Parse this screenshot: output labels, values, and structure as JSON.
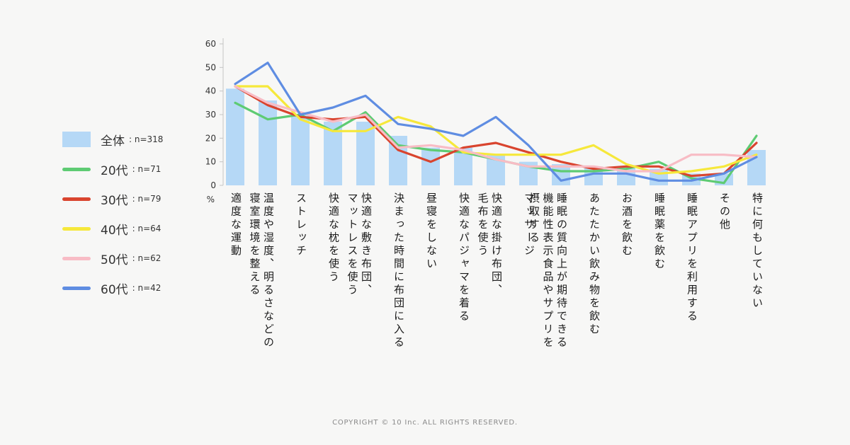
{
  "page": {
    "background": "#f7f7f6"
  },
  "legend": {
    "items": [
      {
        "name": "全体",
        "count": ": n=318",
        "color": "#b5d8f6",
        "swatch": "bar"
      },
      {
        "name": "20代",
        "count": ": n=71",
        "color": "#5ecb73",
        "swatch": "line"
      },
      {
        "name": "30代",
        "count": ": n=79",
        "color": "#d9442e",
        "swatch": "line"
      },
      {
        "name": "40代",
        "count": ": n=64",
        "color": "#f6e83b",
        "swatch": "line"
      },
      {
        "name": "50代",
        "count": ": n=62",
        "color": "#f8bcc5",
        "swatch": "line"
      },
      {
        "name": "60代",
        "count": ": n=42",
        "color": "#5f8de2",
        "swatch": "line"
      }
    ]
  },
  "chart_data": {
    "type": "bar+line",
    "title": "",
    "xlabel": "",
    "ylabel": "%",
    "ylim": [
      0,
      60
    ],
    "y_ticks": [
      0,
      10,
      20,
      30,
      40,
      50,
      60
    ],
    "grid": false,
    "legend_position": "left",
    "categories": [
      "適度な運動",
      "温度や湿度、明るさなどの\n寝室環境を整える",
      "ストレッチ",
      "快適な枕を使う",
      "快適な敷き布団、\nマットレスを使う",
      "決まった時間に布団に入る",
      "昼寝をしない",
      "快適なパジャマを着る",
      "快適な掛け布団、\n毛布を使う",
      "マッサージ",
      "睡眠の質向上が期待できる\n機能性表示食品やサプリを\n摂取する",
      "あたたかい飲み物を飲む",
      "お酒を飲む",
      "睡眠薬を飲む",
      "睡眠アプリを利用する",
      "その他",
      "特に何もしていない"
    ],
    "bar_series": {
      "name": "全体",
      "color": "#b5d8f6",
      "values": [
        41,
        36,
        30,
        27,
        27,
        21,
        16,
        16,
        13,
        10,
        9,
        8,
        8,
        7,
        5,
        5,
        15
      ]
    },
    "series": [
      {
        "name": "20代",
        "color": "#5ecb73",
        "values": [
          35,
          28,
          30,
          23,
          31,
          17,
          15,
          14,
          11,
          8,
          6,
          6,
          7,
          10,
          3,
          1,
          21
        ]
      },
      {
        "name": "30代",
        "color": "#d9442e",
        "values": [
          42,
          34,
          29,
          28,
          29,
          15,
          10,
          16,
          18,
          14,
          10,
          7,
          8,
          8,
          4,
          5,
          18
        ]
      },
      {
        "name": "40代",
        "color": "#f6e83b",
        "values": [
          42,
          42,
          28,
          23,
          23,
          29,
          25,
          14,
          13,
          13,
          13,
          17,
          9,
          5,
          6,
          8,
          13
        ]
      },
      {
        "name": "50代",
        "color": "#f8bcc5",
        "values": [
          42,
          35,
          31,
          27,
          30,
          16,
          17,
          15,
          11,
          8,
          8,
          8,
          6,
          6,
          13,
          13,
          12
        ]
      },
      {
        "name": "60代",
        "color": "#5f8de2",
        "values": [
          43,
          52,
          30,
          33,
          38,
          26,
          24,
          21,
          29,
          17,
          2,
          5,
          5,
          2,
          2,
          5,
          12
        ]
      }
    ]
  },
  "footer": {
    "copyright": "COPYRIGHT © 10 Inc. ALL RIGHTS RESERVED."
  }
}
